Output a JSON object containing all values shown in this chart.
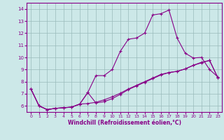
{
  "xlabel": "Windchill (Refroidissement éolien,°C)",
  "bg_color": "#cce8e8",
  "line_color": "#880088",
  "grid_color": "#99bbbb",
  "xlim": [
    -0.5,
    23.5
  ],
  "ylim": [
    5.5,
    14.5
  ],
  "yticks": [
    6,
    7,
    8,
    9,
    10,
    11,
    12,
    13,
    14
  ],
  "xticks": [
    0,
    1,
    2,
    3,
    4,
    5,
    6,
    7,
    8,
    9,
    10,
    11,
    12,
    13,
    14,
    15,
    16,
    17,
    18,
    19,
    20,
    21,
    22,
    23
  ],
  "line1_x": [
    0,
    1,
    2,
    3,
    4,
    5,
    6,
    7,
    8,
    9,
    10,
    11,
    12,
    13,
    14,
    15,
    16,
    17,
    18,
    19,
    20,
    21,
    22,
    23
  ],
  "line1_y": [
    7.4,
    6.0,
    5.7,
    5.8,
    5.85,
    5.9,
    6.15,
    7.1,
    8.5,
    8.5,
    9.0,
    10.5,
    11.5,
    11.6,
    12.0,
    13.5,
    13.6,
    13.9,
    11.6,
    10.35,
    9.95,
    10.0,
    9.0,
    8.4
  ],
  "line2_x": [
    0,
    1,
    2,
    3,
    4,
    5,
    6,
    7,
    8,
    9,
    10,
    11,
    12,
    13,
    14,
    15,
    16,
    17,
    18,
    19,
    20,
    21,
    22,
    23
  ],
  "line2_y": [
    7.4,
    6.0,
    5.7,
    5.8,
    5.85,
    5.9,
    6.15,
    7.1,
    6.25,
    6.35,
    6.6,
    6.95,
    7.35,
    7.65,
    7.95,
    8.25,
    8.55,
    8.75,
    8.85,
    9.05,
    9.35,
    9.6,
    9.75,
    8.35
  ],
  "line3_x": [
    0,
    1,
    2,
    3,
    4,
    5,
    6,
    7,
    8,
    9,
    10,
    11,
    12,
    13,
    14,
    15,
    16,
    17,
    18,
    19,
    20,
    21,
    22,
    23
  ],
  "line3_y": [
    7.4,
    6.0,
    5.7,
    5.8,
    5.85,
    5.9,
    6.15,
    6.2,
    6.3,
    6.5,
    6.75,
    7.05,
    7.4,
    7.7,
    8.0,
    8.3,
    8.6,
    8.75,
    8.85,
    9.05,
    9.35,
    9.55,
    9.75,
    8.35
  ]
}
